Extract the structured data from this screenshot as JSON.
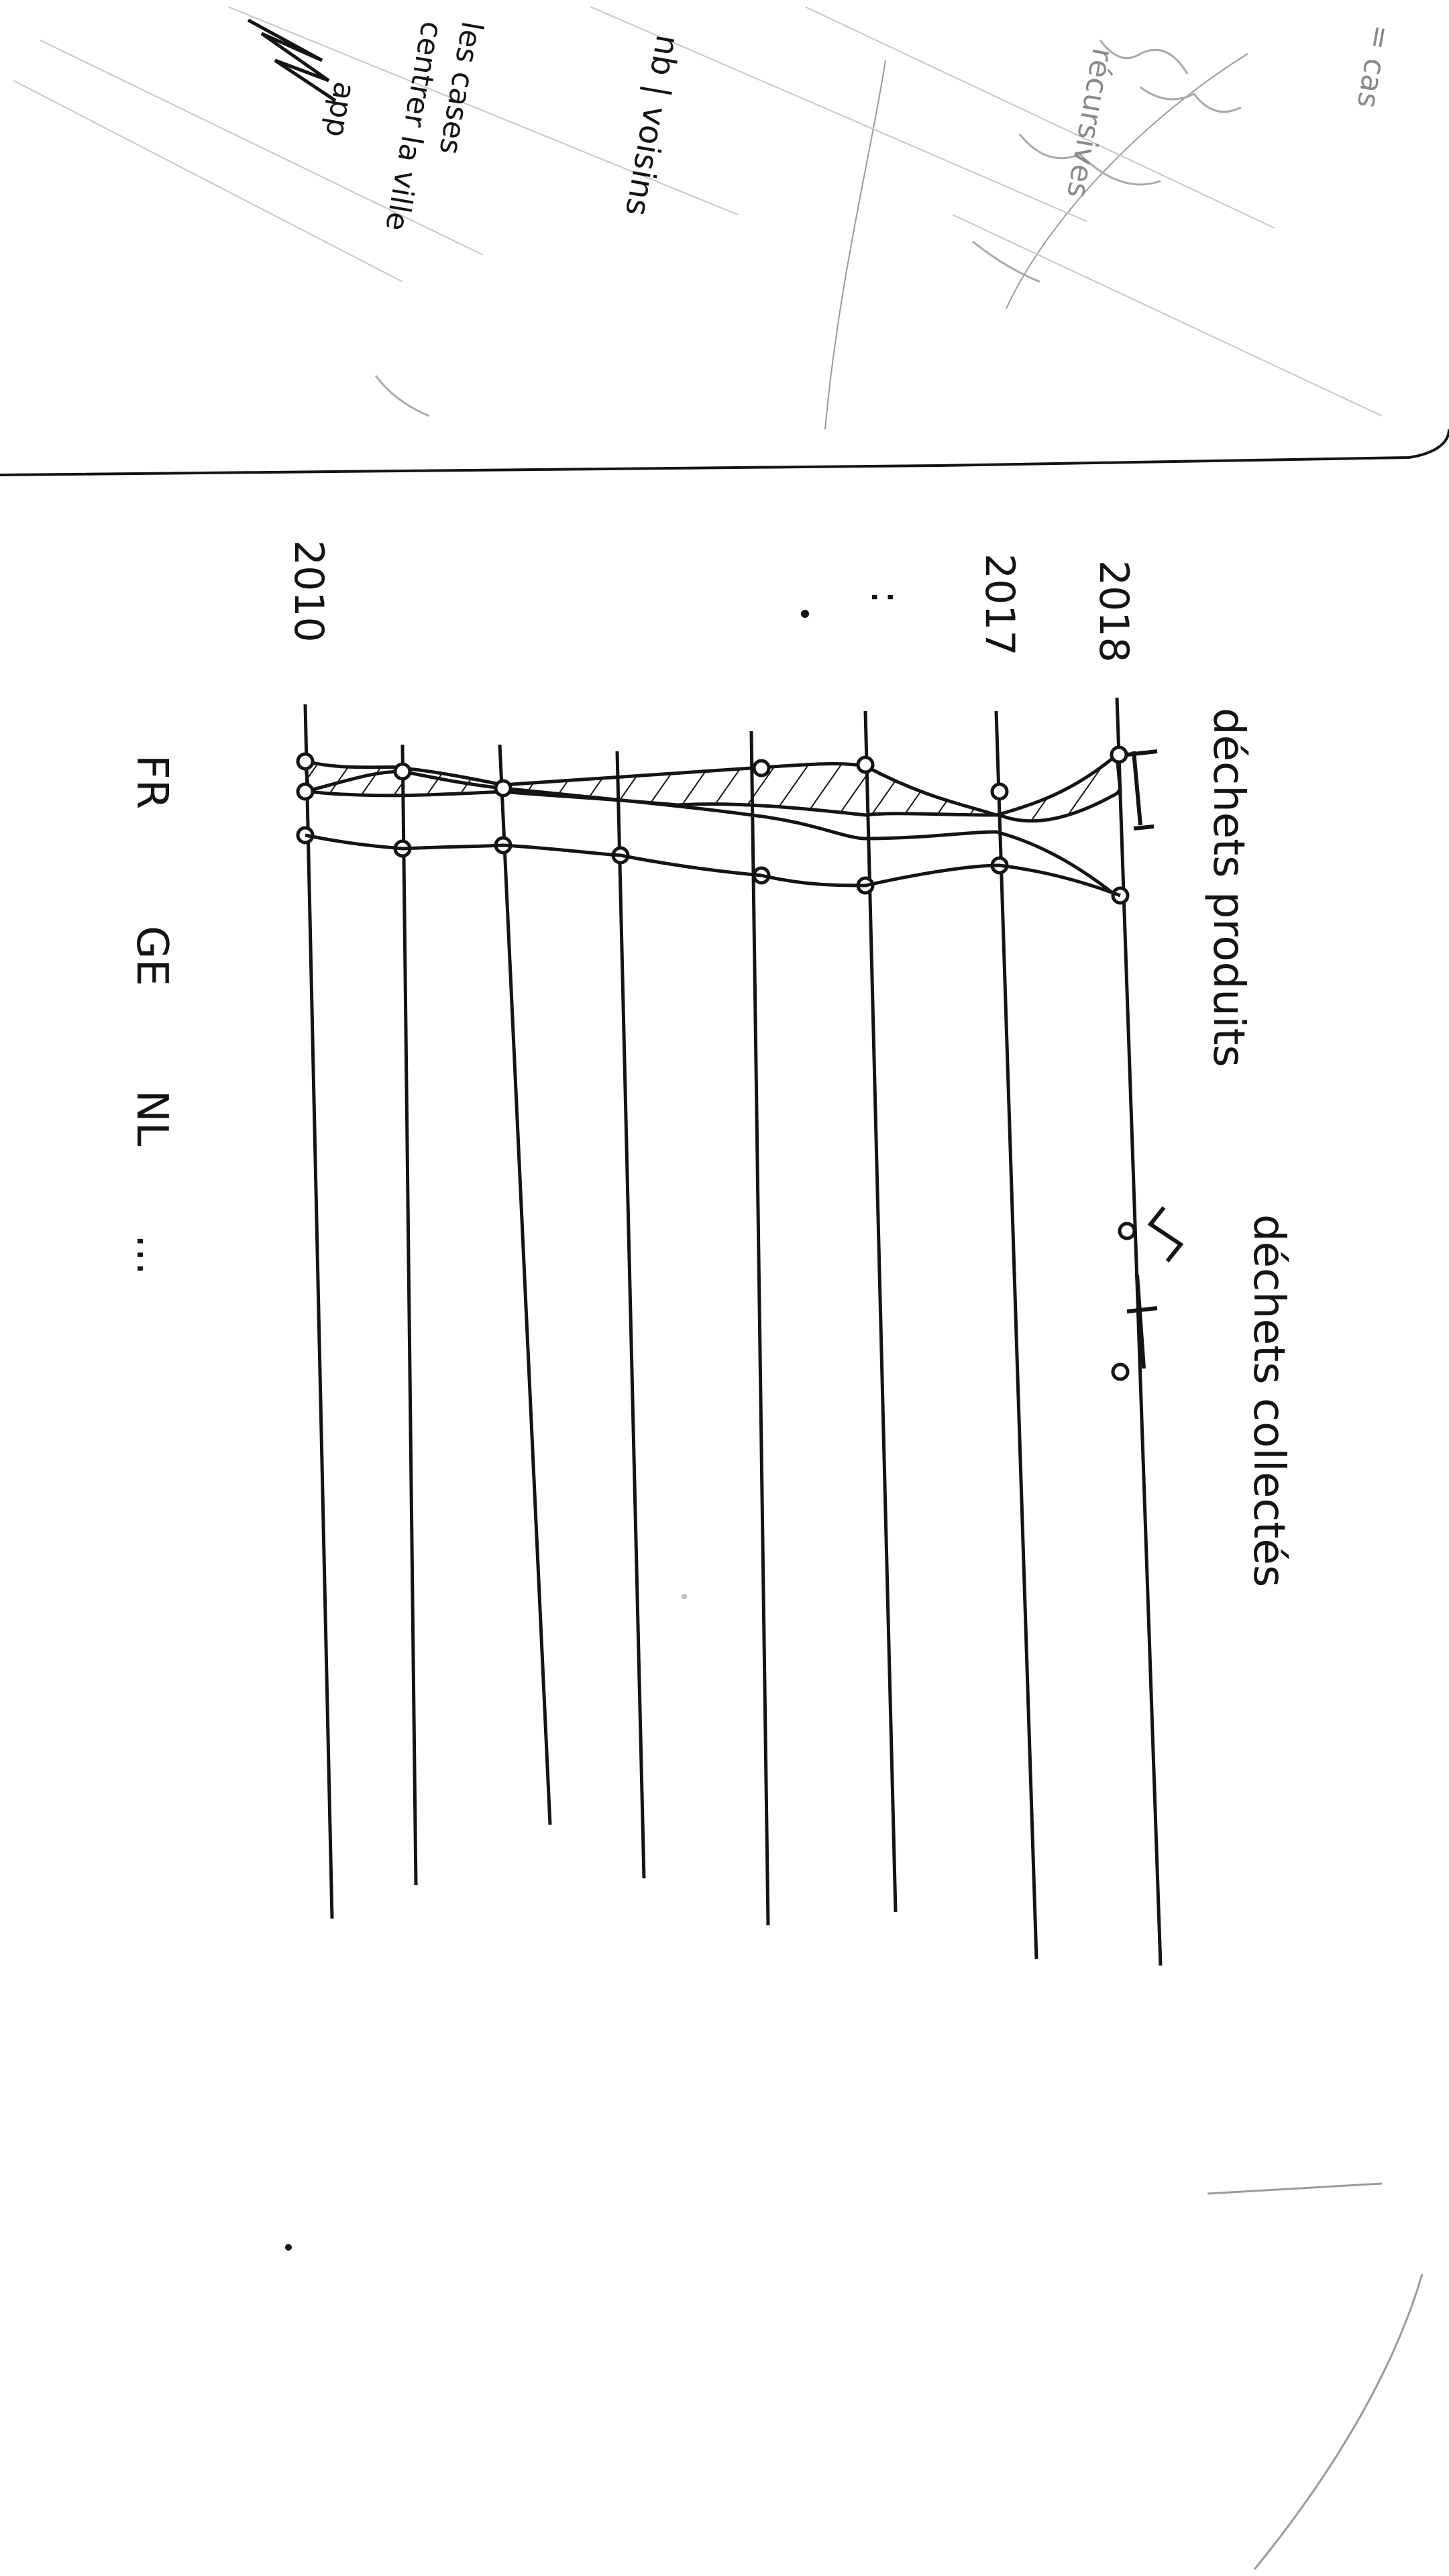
{
  "note": {
    "fragments": [
      "= cas",
      "récursives",
      "nb | voisins",
      "les cases",
      "centrer la ville",
      "app"
    ]
  },
  "diagram": {
    "years": [
      "2018",
      "2017",
      ":",
      "2010"
    ],
    "columns": [
      "déchets produits",
      "déchets collectés"
    ],
    "countries": [
      "FR",
      "GE",
      "NL",
      "..."
    ]
  },
  "colors": {
    "ink": "#141414",
    "faint": "#8a8a8a",
    "paper": "#ffffff"
  }
}
